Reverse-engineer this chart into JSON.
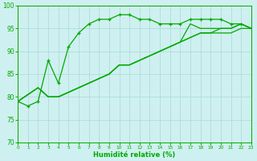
{
  "xlabel": "Humidité relative (%)",
  "xlim": [
    0,
    23
  ],
  "ylim": [
    70,
    100
  ],
  "yticks": [
    70,
    75,
    80,
    85,
    90,
    95,
    100
  ],
  "xticks": [
    0,
    1,
    2,
    3,
    4,
    5,
    6,
    7,
    8,
    9,
    10,
    11,
    12,
    13,
    14,
    15,
    16,
    17,
    18,
    19,
    20,
    21,
    22,
    23
  ],
  "bg_color": "#cff0f0",
  "grid_color": "#a8d8d8",
  "line_color": "#00aa00",
  "line1_x": [
    0,
    1,
    2,
    3,
    4,
    5,
    6,
    7,
    8,
    9,
    10,
    11,
    12,
    13,
    14,
    15,
    16,
    17,
    18,
    19,
    20,
    21,
    22,
    23
  ],
  "line1_y": [
    79,
    78,
    79,
    88,
    83,
    91,
    94,
    96,
    97,
    97,
    98,
    98,
    97,
    97,
    96,
    96,
    96,
    97,
    97,
    97,
    97,
    96,
    96,
    95
  ],
  "line2_x": [
    0,
    2,
    3,
    4,
    5,
    6,
    7,
    8,
    9,
    10,
    11,
    12,
    13,
    14,
    15,
    16,
    17,
    18,
    19,
    20,
    21,
    22,
    23
  ],
  "line2_y": [
    79,
    82,
    80,
    80,
    81,
    82,
    83,
    84,
    85,
    87,
    87,
    88,
    89,
    90,
    91,
    92,
    96,
    95,
    95,
    95,
    95,
    96,
    95
  ],
  "line3_x": [
    0,
    2,
    3,
    4,
    5,
    6,
    7,
    8,
    9,
    10,
    11,
    12,
    13,
    14,
    15,
    16,
    17,
    18,
    19,
    20,
    21,
    22,
    23
  ],
  "line3_y": [
    79,
    82,
    80,
    80,
    81,
    82,
    83,
    84,
    85,
    87,
    87,
    88,
    89,
    90,
    91,
    92,
    93,
    94,
    94,
    95,
    95,
    96,
    95
  ],
  "line4_x": [
    0,
    2,
    3,
    4,
    5,
    6,
    7,
    8,
    9,
    10,
    11,
    12,
    13,
    14,
    15,
    16,
    17,
    18,
    19,
    20,
    21,
    22,
    23
  ],
  "line4_y": [
    79,
    82,
    80,
    80,
    81,
    82,
    83,
    84,
    85,
    87,
    87,
    88,
    89,
    90,
    91,
    92,
    93,
    94,
    94,
    94,
    94,
    95,
    95
  ]
}
